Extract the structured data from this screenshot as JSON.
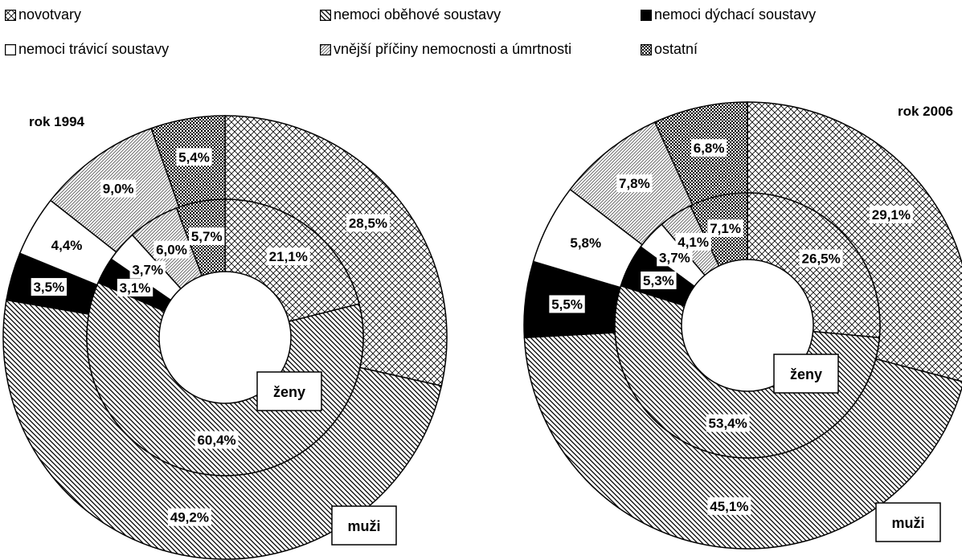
{
  "legend": [
    {
      "label": "novotvary",
      "pattern": "cross"
    },
    {
      "label": "nemoci oběhové soustavy",
      "pattern": "diag"
    },
    {
      "label": "nemoci dýchací soustavy",
      "pattern": "black"
    },
    {
      "label": "nemoci trávicí soustavy",
      "pattern": "white"
    },
    {
      "label": "vnější příčiny nemocnosti a úmrtnosti",
      "pattern": "light"
    },
    {
      "label": "ostatní",
      "pattern": "check"
    }
  ],
  "chart_data": [
    {
      "type": "donut",
      "title": "rok 1994",
      "rings": [
        {
          "name": "muži",
          "values": [
            28.5,
            49.2,
            3.5,
            4.4,
            9.0,
            5.4
          ],
          "labels": [
            "28,5%",
            "49,2%",
            "3,5%",
            "4,4%",
            "9,0%",
            "5,4%"
          ]
        },
        {
          "name": "ženy",
          "values": [
            21.1,
            60.4,
            3.1,
            3.7,
            6.0,
            5.7
          ],
          "labels": [
            "21,1%",
            "60,4%",
            "3,1%",
            "3,7%",
            "6,0%",
            "5,7%"
          ]
        }
      ]
    },
    {
      "type": "donut",
      "title": "rok 2006",
      "rings": [
        {
          "name": "muži",
          "values": [
            29.1,
            45.1,
            5.5,
            5.8,
            7.8,
            6.8
          ],
          "labels": [
            "29,1%",
            "45,1%",
            "5,5%",
            "5,8%",
            "7,8%",
            "6,8%"
          ]
        },
        {
          "name": "ženy",
          "values": [
            26.5,
            53.4,
            5.3,
            3.7,
            4.1,
            7.1
          ],
          "labels": [
            "26,5%",
            "53,4%",
            "5,3%",
            "3,7%",
            "4,1%",
            "7,1%"
          ]
        }
      ]
    }
  ]
}
